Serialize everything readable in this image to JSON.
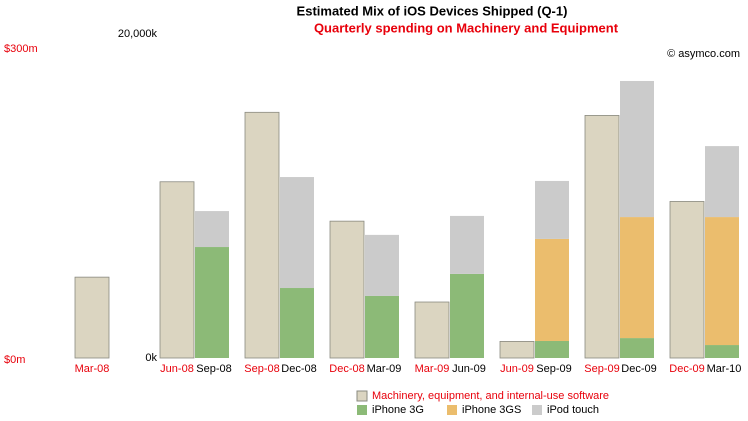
{
  "chart_data": {
    "type": "bar",
    "title": "Estimated Mix of iOS Devices Shipped (Q-1)",
    "subtitle": "Quarterly spending on Machinery and Equipment",
    "annotation": "© asymco.com",
    "categories": [
      "Mar-08",
      "Jun-08",
      "Sep-08",
      "Dec-08",
      "Mar-09",
      "Jun-09",
      "Sep-09",
      "Dec-09"
    ],
    "categories2": [
      null,
      "Sep-08",
      "Dec-08",
      "Mar-09",
      "Jun-09",
      "Sep-09",
      "Dec-09",
      "Mar-10"
    ],
    "ylim": [
      0,
      300
    ],
    "yticks": [
      {
        "value": 0,
        "label": "$0m"
      },
      {
        "value": 300,
        "label": "$300m"
      }
    ],
    "y2lim": [
      0,
      20000
    ],
    "y2ticks": [
      {
        "value": 0,
        "label": "0k"
      },
      {
        "value": 20000,
        "label": "20,000k"
      }
    ],
    "series": [
      {
        "name": "Machinery, equipment, and internal-use software",
        "color": "#dbd5c1",
        "axis": "y",
        "values": [
          78,
          170,
          237,
          132,
          54,
          16,
          234,
          151
        ]
      },
      {
        "name": "iPhone 3G",
        "color": "#8cba77",
        "axis": "y2",
        "values": [
          null,
          6850,
          4320,
          3830,
          5190,
          1050,
          1230,
          800
        ]
      },
      {
        "name": "iPhone 3GS",
        "color": "#ebbd6d",
        "axis": "y2",
        "values": [
          null,
          null,
          null,
          null,
          null,
          6300,
          7470,
          7900
        ]
      },
      {
        "name": "iPod touch",
        "color": "#cbcbcb",
        "axis": "y2",
        "values": [
          null,
          2220,
          6850,
          3770,
          3580,
          3580,
          8400,
          4380
        ]
      }
    ]
  }
}
